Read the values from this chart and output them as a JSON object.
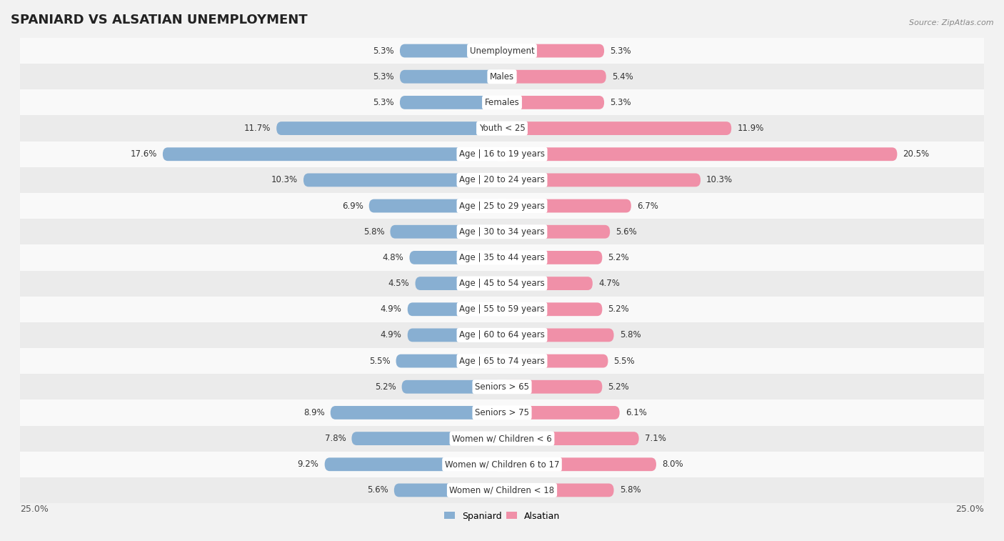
{
  "title": "SPANIARD VS ALSATIAN UNEMPLOYMENT",
  "source": "Source: ZipAtlas.com",
  "categories": [
    "Unemployment",
    "Males",
    "Females",
    "Youth < 25",
    "Age | 16 to 19 years",
    "Age | 20 to 24 years",
    "Age | 25 to 29 years",
    "Age | 30 to 34 years",
    "Age | 35 to 44 years",
    "Age | 45 to 54 years",
    "Age | 55 to 59 years",
    "Age | 60 to 64 years",
    "Age | 65 to 74 years",
    "Seniors > 65",
    "Seniors > 75",
    "Women w/ Children < 6",
    "Women w/ Children 6 to 17",
    "Women w/ Children < 18"
  ],
  "spaniard": [
    5.3,
    5.3,
    5.3,
    11.7,
    17.6,
    10.3,
    6.9,
    5.8,
    4.8,
    4.5,
    4.9,
    4.9,
    5.5,
    5.2,
    8.9,
    7.8,
    9.2,
    5.6
  ],
  "alsatian": [
    5.3,
    5.4,
    5.3,
    11.9,
    20.5,
    10.3,
    6.7,
    5.6,
    5.2,
    4.7,
    5.2,
    5.8,
    5.5,
    5.2,
    6.1,
    7.1,
    8.0,
    5.8
  ],
  "spaniard_color": "#88afd2",
  "alsatian_color": "#f090a8",
  "bar_height": 0.52,
  "max_val": 25.0,
  "background_color": "#f2f2f2",
  "row_color_odd": "#ebebeb",
  "row_color_even": "#f9f9f9",
  "title_fontsize": 13,
  "label_fontsize": 8.5,
  "value_fontsize": 8.5,
  "source_fontsize": 8,
  "legend_fontsize": 9,
  "bottom_label": "25.0%"
}
